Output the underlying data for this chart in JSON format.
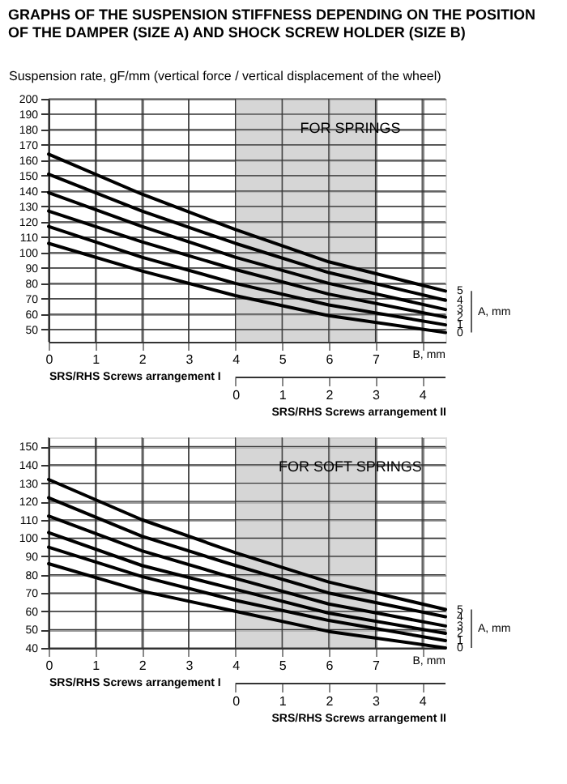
{
  "chart_data": [
    {
      "type": "line",
      "title": "GRAPHS OF THE SUSPENSION STIFFNESS DEPENDING ON THE POSITION OF THE DAMPER (SIZE A) AND SHOCK SCREW HOLDER (SIZE B)",
      "ylabel": "Suspension rate, gF/mm  (vertical force / vertical displacement of the wheel)",
      "xlabel": "SRS/RHS Screws arrangement  I",
      "x2label": "SRS/RHS Screws arrangement  II",
      "legend_title": "A, mm",
      "annotations": [
        "FOR SPRINGS",
        "B, mm"
      ],
      "x": [
        0,
        2,
        4,
        6,
        8.5
      ],
      "series": [
        {
          "name": "5",
          "color": "#000000",
          "values": [
            164,
            138,
            115,
            94,
            75
          ]
        },
        {
          "name": "4",
          "color": "#000000",
          "values": [
            151,
            127,
            106,
            87,
            69
          ]
        },
        {
          "name": "3",
          "color": "#000000",
          "values": [
            139,
            117,
            97,
            80,
            63
          ]
        },
        {
          "name": "2",
          "color": "#000000",
          "values": [
            127,
            107,
            89,
            73,
            58
          ]
        },
        {
          "name": "1",
          "color": "#000000",
          "values": [
            117,
            97,
            80,
            66,
            53
          ]
        },
        {
          "name": "0",
          "color": "#000000",
          "values": [
            106,
            88,
            72,
            59,
            48
          ]
        }
      ],
      "xlim": [
        0,
        8.5
      ],
      "xticks": [
        0,
        1,
        2,
        3,
        4,
        5,
        6,
        7,
        {
          "value": 8,
          "label": null
        }
      ],
      "x2lim": [
        -4,
        4.5
      ],
      "x2ticks": [
        0,
        1,
        2,
        3,
        4
      ],
      "ylim": [
        42,
        200
      ],
      "yticks": [
        50,
        60,
        70,
        80,
        90,
        100,
        110,
        120,
        130,
        140,
        150,
        160,
        170,
        180,
        190,
        200
      ],
      "bands": [
        {
          "axis": "x",
          "from": 4,
          "to": 7,
          "color": "#c4c4c4"
        }
      ],
      "grid": true,
      "line_style": "solid",
      "marker": "none"
    },
    {
      "type": "line",
      "xlabel": "SRS/RHS Screws arrangement  I",
      "x2label": "SRS/RHS Screws arrangement  II",
      "legend_title": "A, mm",
      "annotations": [
        "FOR SOFT SPRINGS",
        "B, mm"
      ],
      "x": [
        0,
        2,
        4,
        6,
        8.5
      ],
      "series": [
        {
          "name": "5",
          "color": "#000000",
          "values": [
            132,
            110,
            92,
            76,
            61
          ]
        },
        {
          "name": "4",
          "color": "#000000",
          "values": [
            122,
            101,
            85,
            70,
            57
          ]
        },
        {
          "name": "3",
          "color": "#000000",
          "values": [
            112,
            93,
            78,
            64,
            52
          ]
        },
        {
          "name": "2",
          "color": "#000000",
          "values": [
            103,
            85,
            72,
            59,
            48
          ]
        },
        {
          "name": "1",
          "color": "#000000",
          "values": [
            95,
            79,
            66,
            55,
            44
          ]
        },
        {
          "name": "0",
          "color": "#000000",
          "values": [
            86,
            71,
            60,
            49,
            40
          ]
        }
      ],
      "xlim": [
        0,
        8.5
      ],
      "xticks": [
        0,
        1,
        2,
        3,
        4,
        5,
        6,
        7,
        {
          "value": 8,
          "label": null
        }
      ],
      "x2lim": [
        -4,
        4.5
      ],
      "x2ticks": [
        0,
        1,
        2,
        3,
        4
      ],
      "ylim": [
        40,
        155
      ],
      "yticks": [
        40,
        50,
        60,
        70,
        80,
        90,
        100,
        110,
        120,
        130,
        140,
        150
      ],
      "bands": [
        {
          "axis": "x",
          "from": 4,
          "to": 7,
          "color": "#c4c4c4"
        }
      ],
      "grid": true,
      "line_style": "solid",
      "marker": "none"
    }
  ]
}
